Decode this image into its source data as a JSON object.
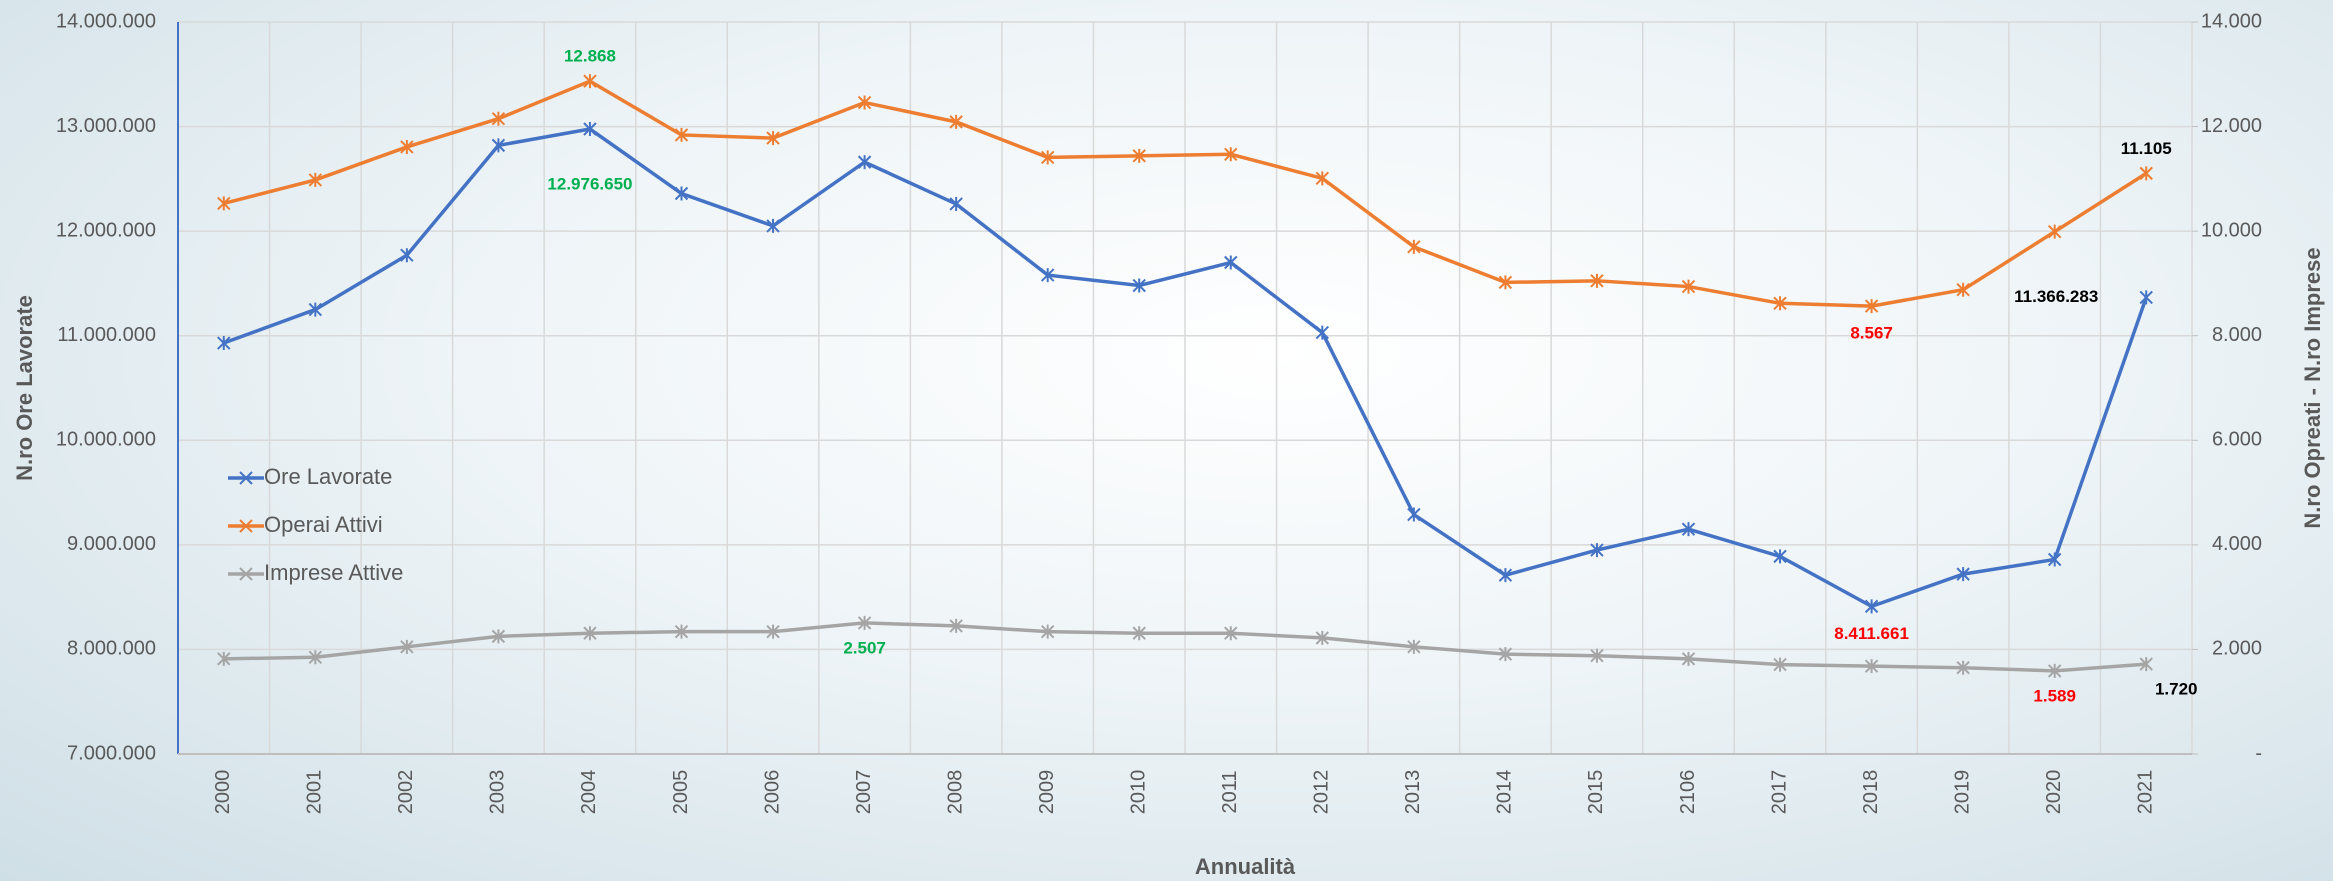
{
  "chart_data": {
    "type": "line",
    "x_label": "Annualità",
    "y_label": "N.ro Ore Lavorate",
    "y2_label": "N.ro Opreati - N.ro Imprese",
    "categories": [
      "2000",
      "2001",
      "2002",
      "2003",
      "2004",
      "2005",
      "2006",
      "2007",
      "2008",
      "2009",
      "2010",
      "2011",
      "2012",
      "2013",
      "2014",
      "2015",
      "2106",
      "2017",
      "2018",
      "2019",
      "2020",
      "2021"
    ],
    "ylim": [
      7000000,
      14000000
    ],
    "yticks": [
      {
        "value": 7000000,
        "label": "7.000.000"
      },
      {
        "value": 8000000,
        "label": "8.000.000"
      },
      {
        "value": 9000000,
        "label": "9.000.000"
      },
      {
        "value": 10000000,
        "label": "10.000.000"
      },
      {
        "value": 11000000,
        "label": "11.000.000"
      },
      {
        "value": 12000000,
        "label": "12.000.000"
      },
      {
        "value": 13000000,
        "label": "13.000.000"
      },
      {
        "value": 14000000,
        "label": "14.000.000"
      }
    ],
    "y2lim": [
      0,
      14000
    ],
    "y2ticks": [
      {
        "value": 0,
        "label": "-"
      },
      {
        "value": 2000,
        "label": "2.000"
      },
      {
        "value": 4000,
        "label": "4.000"
      },
      {
        "value": 6000,
        "label": "6.000"
      },
      {
        "value": 8000,
        "label": "8.000"
      },
      {
        "value": 10000,
        "label": "10.000"
      },
      {
        "value": 12000,
        "label": "12.000"
      },
      {
        "value": 14000,
        "label": "14.000"
      }
    ],
    "grid": true,
    "legend": "left",
    "series": [
      {
        "name": "Ore Lavorate",
        "color": "#4472c4",
        "axis": "y",
        "values": [
          10930000,
          11250000,
          11770000,
          12820000,
          12976650,
          12360000,
          12050000,
          12660000,
          12260000,
          11580000,
          11480000,
          11700000,
          11030000,
          9290000,
          8710000,
          8950000,
          9150000,
          8890000,
          8411661,
          8720000,
          8860000,
          11366283
        ],
        "value_labels": [
          null,
          null,
          null,
          null,
          "12.976.650",
          null,
          null,
          null,
          null,
          null,
          null,
          null,
          null,
          null,
          null,
          null,
          null,
          null,
          "8.411.661",
          null,
          null,
          "11.366.283"
        ],
        "value_label_colors": [
          null,
          null,
          null,
          null,
          "#00b050",
          null,
          null,
          null,
          null,
          null,
          null,
          null,
          null,
          null,
          null,
          null,
          null,
          null,
          "#ff0000",
          null,
          null,
          "#000000"
        ]
      },
      {
        "name": "Operai Attivi",
        "color": "#ed7d31",
        "axis": "y2",
        "values": [
          10530,
          10980,
          11610,
          12150,
          12868,
          11840,
          11780,
          12460,
          12090,
          11410,
          11440,
          11470,
          11010,
          9700,
          9020,
          9050,
          8940,
          8620,
          8567,
          8880,
          9990,
          11105
        ],
        "value_labels": [
          null,
          null,
          null,
          null,
          "12.868",
          null,
          null,
          null,
          null,
          null,
          null,
          null,
          null,
          null,
          null,
          null,
          null,
          null,
          "8.567",
          null,
          null,
          "11.105"
        ],
        "value_label_colors": [
          null,
          null,
          null,
          null,
          "#00b050",
          null,
          null,
          null,
          null,
          null,
          null,
          null,
          null,
          null,
          null,
          null,
          null,
          null,
          "#ff0000",
          null,
          null,
          "#000000"
        ]
      },
      {
        "name": "Imprese Attive",
        "color": "#a5a5a5",
        "axis": "y2",
        "values": [
          1820,
          1850,
          2050,
          2250,
          2310,
          2340,
          2340,
          2507,
          2450,
          2340,
          2310,
          2310,
          2220,
          2050,
          1910,
          1880,
          1820,
          1710,
          1680,
          1650,
          1589,
          1720
        ],
        "value_labels": [
          null,
          null,
          null,
          null,
          null,
          null,
          null,
          "2.507",
          null,
          null,
          null,
          null,
          null,
          null,
          null,
          null,
          null,
          null,
          null,
          null,
          "1.589",
          "1.720"
        ],
        "value_label_colors": [
          null,
          null,
          null,
          null,
          null,
          null,
          null,
          "#00b050",
          null,
          null,
          null,
          null,
          null,
          null,
          null,
          null,
          null,
          null,
          null,
          null,
          "#ff0000",
          "#000000"
        ]
      }
    ]
  }
}
